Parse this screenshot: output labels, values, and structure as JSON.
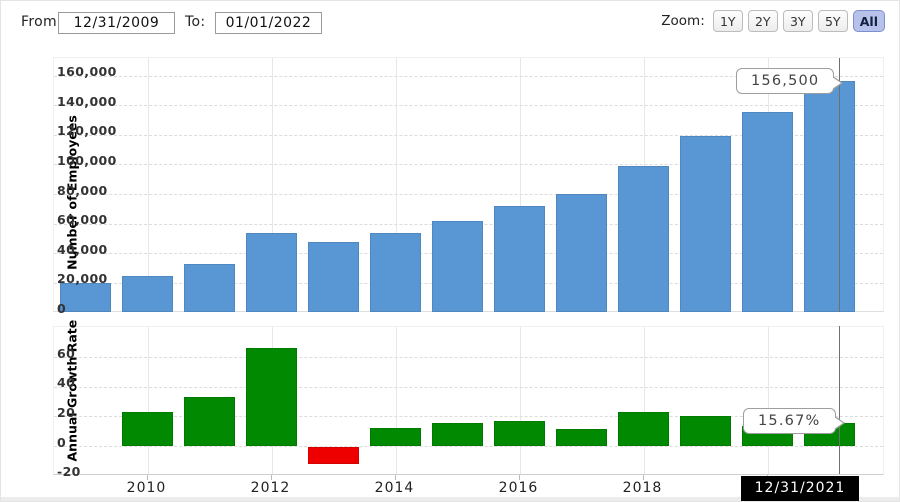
{
  "toolbar": {
    "from_label": "From:",
    "from_value": "12/31/2009",
    "to_label": "To:",
    "to_value": "01/01/2022",
    "zoom_label": "Zoom:",
    "zoom_buttons": [
      "1Y",
      "2Y",
      "3Y",
      "5Y",
      "All"
    ],
    "zoom_active": "All"
  },
  "chart_data": [
    {
      "type": "bar",
      "ylabel": "Number of Employees",
      "years": [
        2009,
        2010,
        2011,
        2012,
        2013,
        2014,
        2015,
        2016,
        2017,
        2018,
        2019,
        2020,
        2021
      ],
      "values": [
        19835,
        24400,
        32467,
        53861,
        47756,
        53600,
        61814,
        72053,
        80110,
        98771,
        118899,
        135301,
        156500
      ],
      "ylim": [
        0,
        171000
      ],
      "yticks": [
        {
          "value": 0,
          "label": "0"
        },
        {
          "value": 20000,
          "label": "20,000"
        },
        {
          "value": 40000,
          "label": "40,000"
        },
        {
          "value": 60000,
          "label": "60,000"
        },
        {
          "value": 80000,
          "label": "80,000"
        },
        {
          "value": 100000,
          "label": "100,000"
        },
        {
          "value": 120000,
          "label": "120,000"
        },
        {
          "value": 140000,
          "label": "140,000"
        },
        {
          "value": 160000,
          "label": "160,000"
        }
      ],
      "bar_color": "#5897d4",
      "grid": "dashed"
    },
    {
      "type": "bar",
      "ylabel": "Annual Growth Rate",
      "years": [
        2010,
        2011,
        2012,
        2013,
        2014,
        2015,
        2016,
        2017,
        2018,
        2019,
        2020,
        2021
      ],
      "values": [
        23.01,
        33.06,
        65.88,
        -11.34,
        12.24,
        15.32,
        16.56,
        11.18,
        23.29,
        20.38,
        13.79,
        15.67
      ],
      "ylim": [
        -20,
        80
      ],
      "yticks": [
        {
          "value": -20,
          "label": "-20"
        },
        {
          "value": 0,
          "label": "0"
        },
        {
          "value": 20,
          "label": "20"
        },
        {
          "value": 40,
          "label": "40"
        },
        {
          "value": 60,
          "label": "60"
        }
      ],
      "positive_color": "#018a01",
      "negative_color": "#ee0000",
      "grid": "dashed"
    }
  ],
  "x_axis": {
    "tick_labels": [
      "2010",
      "2012",
      "2014",
      "2016",
      "2018",
      "2020"
    ]
  },
  "tooltips": {
    "employees": "156,500",
    "growth": "15.67%"
  },
  "crosshair": {
    "date_label": "12/31/2021"
  }
}
